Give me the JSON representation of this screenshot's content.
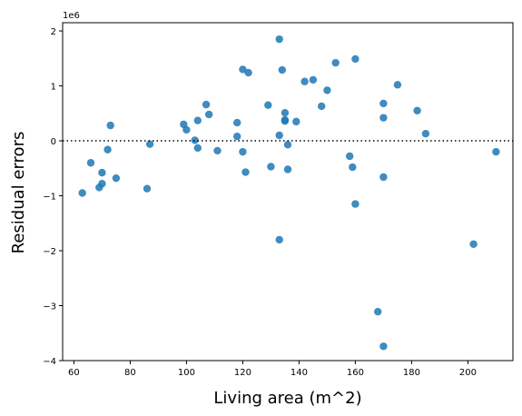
{
  "chart_data": {
    "type": "scatter",
    "title": "",
    "xlabel": "Living area (m^2)",
    "ylabel": "Residual errors",
    "y_offset_label": "1e6",
    "y_scale": 1000000,
    "xlim": [
      56,
      216
    ],
    "ylim": [
      -4000000,
      2150000
    ],
    "xticks": [
      60,
      80,
      100,
      120,
      140,
      160,
      180,
      200
    ],
    "yticks": [
      -4000000,
      -3000000,
      -2000000,
      -1000000,
      0,
      1000000,
      2000000
    ],
    "ytick_labels": [
      "−4",
      "−3",
      "−2",
      "−1",
      "0",
      "1",
      "2"
    ],
    "reference_line_y": 0,
    "grid": false,
    "marker_color": "#1f77b4",
    "points": [
      {
        "x": 63,
        "y": -950000
      },
      {
        "x": 66,
        "y": -400000
      },
      {
        "x": 69,
        "y": -850000
      },
      {
        "x": 70,
        "y": -580000
      },
      {
        "x": 70,
        "y": -780000
      },
      {
        "x": 72,
        "y": -160000
      },
      {
        "x": 73,
        "y": 280000
      },
      {
        "x": 75,
        "y": -680000
      },
      {
        "x": 86,
        "y": -870000
      },
      {
        "x": 87,
        "y": -60000
      },
      {
        "x": 99,
        "y": 300000
      },
      {
        "x": 100,
        "y": 200000
      },
      {
        "x": 103,
        "y": 10000
      },
      {
        "x": 104,
        "y": 370000
      },
      {
        "x": 104,
        "y": -130000
      },
      {
        "x": 107,
        "y": 660000
      },
      {
        "x": 108,
        "y": 480000
      },
      {
        "x": 111,
        "y": -180000
      },
      {
        "x": 118,
        "y": 330000
      },
      {
        "x": 118,
        "y": 80000
      },
      {
        "x": 120,
        "y": 1300000
      },
      {
        "x": 120,
        "y": -200000
      },
      {
        "x": 121,
        "y": -570000
      },
      {
        "x": 122,
        "y": 1240000
      },
      {
        "x": 129,
        "y": 650000
      },
      {
        "x": 130,
        "y": -470000
      },
      {
        "x": 133,
        "y": 1850000
      },
      {
        "x": 133,
        "y": 100000
      },
      {
        "x": 133,
        "y": -1800000
      },
      {
        "x": 134,
        "y": 1290000
      },
      {
        "x": 135,
        "y": 510000
      },
      {
        "x": 135,
        "y": 380000
      },
      {
        "x": 135,
        "y": 360000
      },
      {
        "x": 136,
        "y": -520000
      },
      {
        "x": 136,
        "y": -70000
      },
      {
        "x": 139,
        "y": 350000
      },
      {
        "x": 142,
        "y": 1080000
      },
      {
        "x": 145,
        "y": 1110000
      },
      {
        "x": 148,
        "y": 630000
      },
      {
        "x": 150,
        "y": 920000
      },
      {
        "x": 153,
        "y": 1420000
      },
      {
        "x": 158,
        "y": -280000
      },
      {
        "x": 159,
        "y": -480000
      },
      {
        "x": 160,
        "y": 1490000
      },
      {
        "x": 160,
        "y": -1150000
      },
      {
        "x": 168,
        "y": -3110000
      },
      {
        "x": 170,
        "y": 680000
      },
      {
        "x": 170,
        "y": 420000
      },
      {
        "x": 170,
        "y": -660000
      },
      {
        "x": 170,
        "y": -3740000
      },
      {
        "x": 175,
        "y": 1020000
      },
      {
        "x": 182,
        "y": 550000
      },
      {
        "x": 185,
        "y": 130000
      },
      {
        "x": 202,
        "y": -1880000
      },
      {
        "x": 210,
        "y": -200000
      }
    ]
  }
}
